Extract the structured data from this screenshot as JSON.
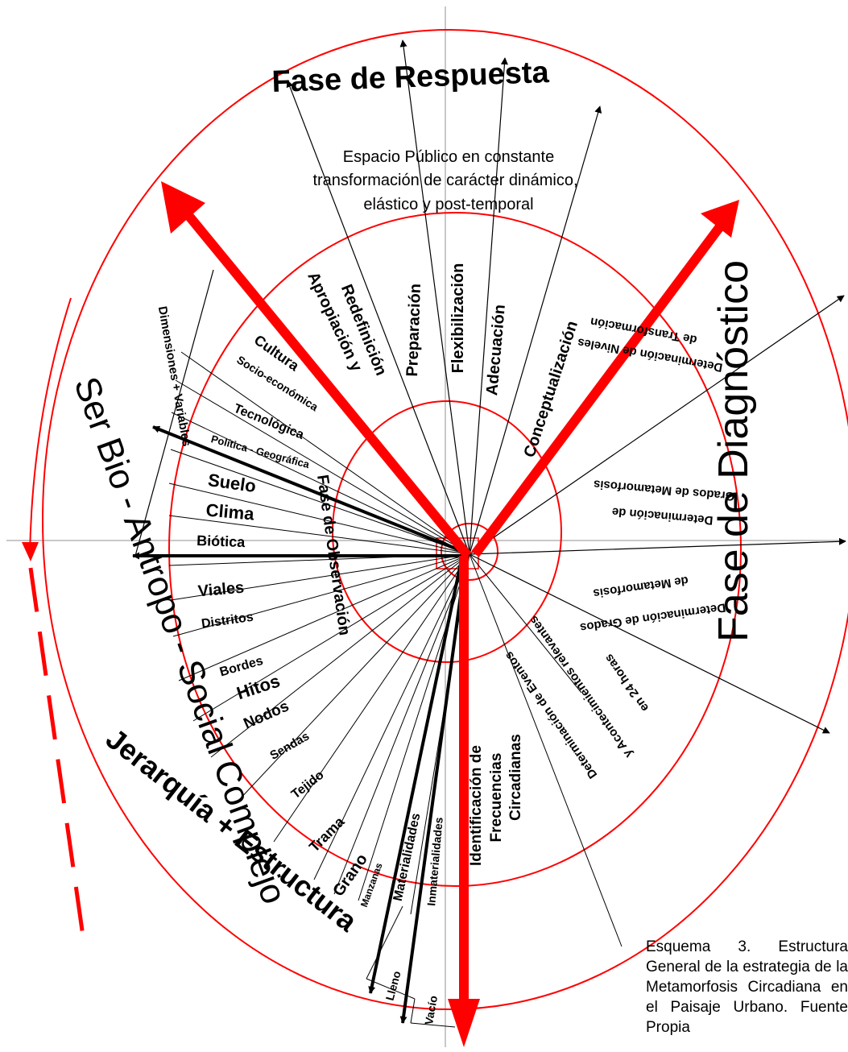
{
  "titles": {
    "response_phase": "Fase de Respuesta",
    "diagnostic_phase": "Fase de Diagnóstico",
    "observation_phase": "Fase de Observación",
    "hierarchy_structure": "Jerarquía + Estructura",
    "ser_bio": "Ser Bio - Antropo - Social Complejo",
    "dimensions_variables": "Dimensiones + Variables"
  },
  "center_text": [
    "Espacio Público en constante",
    "transformación de carácter dinámico,",
    "elástico y post-temporal"
  ],
  "response_labels": [
    "Apropiación y",
    "Redefinición",
    "Preparación",
    "Flexibilización",
    "Adecuación",
    "Conceptualización"
  ],
  "diagnostic_labels": [
    "de Transformación",
    "Determinación de Niveles",
    "Grados de Metamorfosis",
    "Determinación de",
    "de Metamorfosis",
    "Determinación de Grados",
    "en 24 horas",
    "y Acontecimientos relevantes",
    "Determinación de Eventos",
    "Identificación de",
    "Frecuencias",
    "Circadianas"
  ],
  "dimension_labels": [
    "Cultura",
    "Socio-económica",
    "Tecnológica",
    "Política - Geográfica",
    "Suelo",
    "Clima",
    "Biótica"
  ],
  "structure_labels": [
    "Viales",
    "Distritos",
    "Bordes",
    "Hitos",
    "Nodos",
    "Sendas",
    "Tejido",
    "Trama",
    "Grano",
    "Manzanas",
    "Materialidades",
    "Inmaterialidades",
    "Lleno",
    "Vacío"
  ],
  "caption": "Esquema 3. Estructura General de la estrategia de la Metamorfosis Circadiana en el Paisaje Urbano. Fuente Propia",
  "colors": {
    "red": "#ff0000",
    "black": "#000000",
    "gray": "#c8c8c8"
  }
}
